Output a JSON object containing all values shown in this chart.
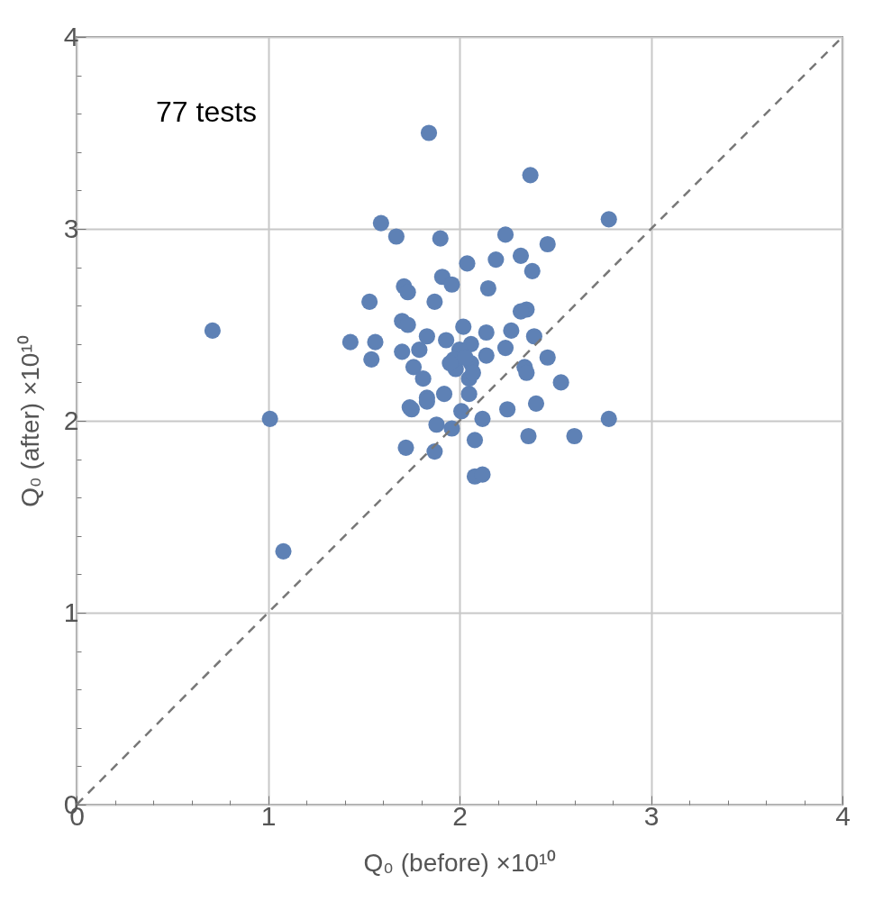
{
  "chart_data": {
    "type": "scatter",
    "xlabel": "Q₀ (before) ×10¹⁰",
    "ylabel": "Q₀ (after) ×10¹⁰",
    "annotations": [
      "77 tests"
    ],
    "xlim": [
      0,
      4
    ],
    "ylim": [
      0,
      4
    ],
    "xticks": [
      0,
      {
        "value": 0.2,
        "label": null
      },
      {
        "value": 0.4,
        "label": null
      },
      {
        "value": 0.6,
        "label": null
      },
      {
        "value": 0.8,
        "label": null
      },
      1,
      {
        "value": 1.2,
        "label": null
      },
      {
        "value": 1.4,
        "label": null
      },
      {
        "value": 1.6,
        "label": null
      },
      {
        "value": 1.8,
        "label": null
      },
      2,
      {
        "value": 2.2,
        "label": null
      },
      {
        "value": 2.4,
        "label": null
      },
      {
        "value": 2.6,
        "label": null
      },
      {
        "value": 2.8,
        "label": null
      },
      3,
      {
        "value": 3.2,
        "label": null
      },
      {
        "value": 3.4,
        "label": null
      },
      {
        "value": 3.6,
        "label": null
      },
      {
        "value": 3.8,
        "label": null
      },
      4
    ],
    "yticks": [
      0,
      {
        "value": 0.2,
        "label": null
      },
      {
        "value": 0.4,
        "label": null
      },
      {
        "value": 0.6,
        "label": null
      },
      {
        "value": 0.8,
        "label": null
      },
      1,
      {
        "value": 1.2,
        "label": null
      },
      {
        "value": 1.4,
        "label": null
      },
      {
        "value": 1.6,
        "label": null
      },
      {
        "value": 1.8,
        "label": null
      },
      2,
      {
        "value": 2.2,
        "label": null
      },
      {
        "value": 2.4,
        "label": null
      },
      {
        "value": 2.6,
        "label": null
      },
      {
        "value": 2.8,
        "label": null
      },
      3,
      {
        "value": 3.2,
        "label": null
      },
      {
        "value": 3.4,
        "label": null
      },
      {
        "value": 3.6,
        "label": null
      },
      {
        "value": 3.8,
        "label": null
      },
      4
    ],
    "grid": true,
    "marker": "circle",
    "series": [
      {
        "color": "#5e81b5",
        "x": [
          0.71,
          1.01,
          1.08,
          1.84,
          2.37,
          2.78,
          1.59,
          1.67,
          1.9,
          2.24,
          2.46,
          2.04,
          2.19,
          2.32,
          2.38,
          1.91,
          1.96,
          1.71,
          1.73,
          2.15,
          1.53,
          1.87,
          2.35,
          2.32,
          1.7,
          1.73,
          2.02,
          2.27,
          2.14,
          2.39,
          1.83,
          1.43,
          1.56,
          1.93,
          2.06,
          2.24,
          1.7,
          1.79,
          1.54,
          2.46,
          2.14,
          1.98,
          2.06,
          2.34,
          1.76,
          2.35,
          1.81,
          2.05,
          2.53,
          1.92,
          1.83,
          2.05,
          1.74,
          1.83,
          2.01,
          2.4,
          2.25,
          2.78,
          2.12,
          1.88,
          1.96,
          2.08,
          2.36,
          2.6,
          1.72,
          1.87,
          2.08,
          2.12,
          2.0,
          1.97,
          1.75,
          2.03,
          1.95,
          2.07
        ],
        "values": [
          2.47,
          2.01,
          1.32,
          3.5,
          3.28,
          3.05,
          3.03,
          2.96,
          2.95,
          2.97,
          2.92,
          2.82,
          2.84,
          2.86,
          2.78,
          2.75,
          2.71,
          2.7,
          2.67,
          2.69,
          2.62,
          2.62,
          2.58,
          2.57,
          2.52,
          2.5,
          2.49,
          2.47,
          2.46,
          2.44,
          2.44,
          2.41,
          2.41,
          2.42,
          2.4,
          2.38,
          2.36,
          2.37,
          2.32,
          2.33,
          2.34,
          2.27,
          2.3,
          2.28,
          2.28,
          2.25,
          2.22,
          2.22,
          2.2,
          2.14,
          2.12,
          2.14,
          2.07,
          2.1,
          2.05,
          2.09,
          2.06,
          2.01,
          2.01,
          1.98,
          1.96,
          1.9,
          1.92,
          1.92,
          1.86,
          1.84,
          1.71,
          1.72,
          2.37,
          2.32,
          2.06,
          2.33,
          2.3,
          2.25
        ]
      },
      {
        "type": "line",
        "color": "#777777",
        "line_style": "dashed",
        "marker": "none",
        "x": [
          0,
          4
        ],
        "values": [
          0,
          4
        ]
      }
    ]
  }
}
